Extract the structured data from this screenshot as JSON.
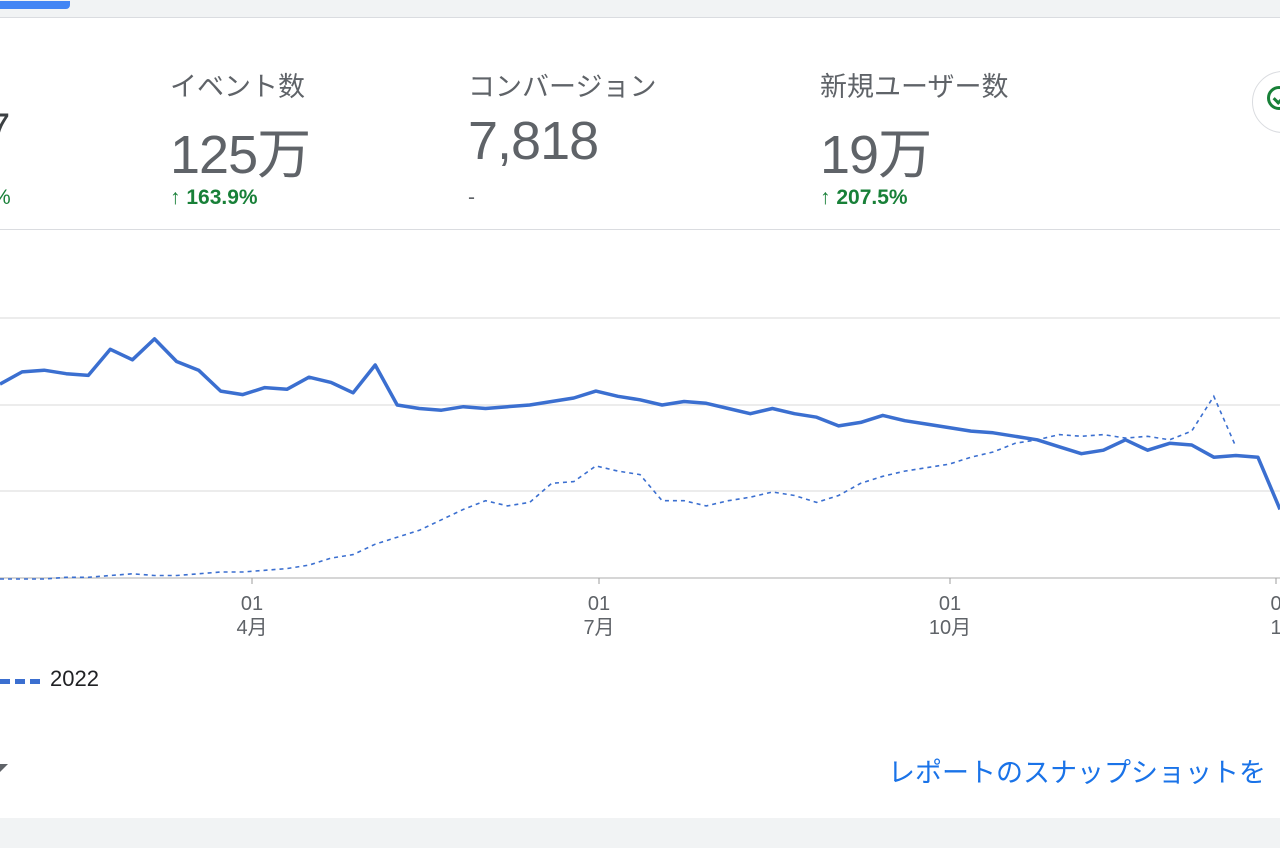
{
  "metrics": [
    {
      "label": "イベント数",
      "value": "125万",
      "change": "163.9%",
      "trend": "up"
    },
    {
      "label": "コンバージョン",
      "value": "7,818",
      "change": "-",
      "trend": "none"
    },
    {
      "label": "新規ユーザー数",
      "value": "19万",
      "change": "207.5%",
      "trend": "up"
    }
  ],
  "partial_left_metric": {
    "value_fragment": "7",
    "change_fragment": "%"
  },
  "colors": {
    "accent": "#3b6fd0",
    "positive": "#188038",
    "link": "#1a73e8",
    "gridline": "#e0e0e0"
  },
  "icons": {
    "up_arrow": "↑",
    "check": "check-circle-icon",
    "dropdown": "caret-down-icon"
  },
  "chart_data": {
    "type": "line",
    "x_ticks": [
      {
        "day": "01",
        "month": "4月"
      },
      {
        "day": "01",
        "month": "7月"
      },
      {
        "day": "01",
        "month": "10月"
      },
      {
        "day": "0",
        "month": "1"
      }
    ],
    "y_gridlines": 4,
    "series": [
      {
        "name": "",
        "style": "solid",
        "values": [
          1.12,
          1.19,
          1.2,
          1.18,
          1.17,
          1.32,
          1.26,
          1.38,
          1.25,
          1.2,
          1.08,
          1.06,
          1.1,
          1.09,
          1.16,
          1.13,
          1.07,
          1.23,
          1.0,
          0.98,
          0.97,
          0.99,
          0.98,
          0.99,
          1.0,
          1.02,
          1.04,
          1.08,
          1.05,
          1.03,
          1.0,
          1.02,
          1.01,
          0.98,
          0.95,
          0.98,
          0.95,
          0.93,
          0.88,
          0.9,
          0.94,
          0.91,
          0.89,
          0.87,
          0.85,
          0.84,
          0.82,
          0.8,
          0.76,
          0.72,
          0.74,
          0.8,
          0.74,
          0.78,
          0.77,
          0.7,
          0.71,
          0.7,
          0.4
        ]
      },
      {
        "name": "2022",
        "style": "dashed",
        "values": [
          0.0,
          0.0,
          0.0,
          0.01,
          0.01,
          0.02,
          0.03,
          0.02,
          0.02,
          0.03,
          0.04,
          0.04,
          0.05,
          0.06,
          0.08,
          0.12,
          0.14,
          0.2,
          0.24,
          0.28,
          0.34,
          0.4,
          0.45,
          0.42,
          0.44,
          0.55,
          0.56,
          0.65,
          0.62,
          0.6,
          0.45,
          0.45,
          0.42,
          0.45,
          0.47,
          0.5,
          0.48,
          0.44,
          0.48,
          0.55,
          0.59,
          0.62,
          0.64,
          0.66,
          0.7,
          0.73,
          0.78,
          0.8,
          0.83,
          0.82,
          0.83,
          0.81,
          0.82,
          0.8,
          0.85,
          1.05,
          0.76
        ]
      }
    ]
  },
  "legend": {
    "label": "2022"
  },
  "footer": {
    "snapshot_link": "レポートのスナップショットを"
  }
}
